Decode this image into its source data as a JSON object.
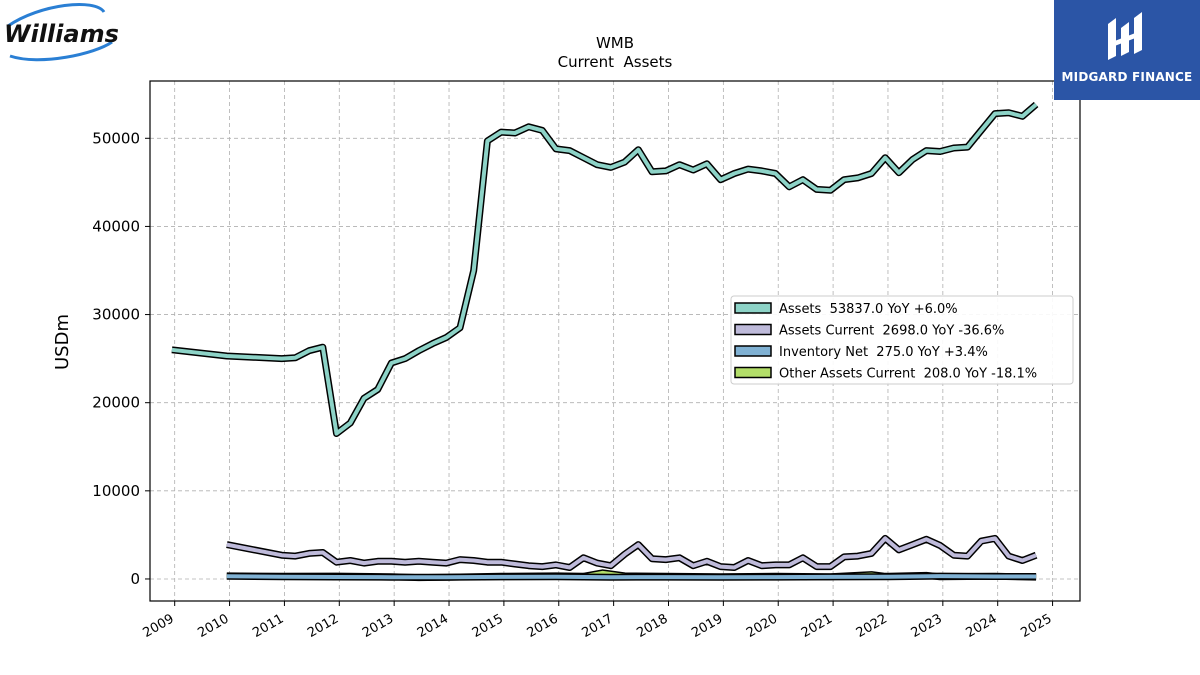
{
  "logos": {
    "left_text": "Williams",
    "right_text": "MIDGARD FINANCE"
  },
  "colors": {
    "assets": "#8dd3c7",
    "assets_current": "#bebada",
    "inventory_net": "#80b1d3",
    "other_assets_current": "#b3de69",
    "brand_blue": "#2b55a6",
    "williams_blue": "#2a7fd4"
  },
  "chart_data": {
    "type": "line",
    "title": "WMB",
    "subtitle": "Current  Assets",
    "ylabel": "USDm",
    "xlabel": "",
    "xlim": [
      2008.55,
      2025.5
    ],
    "ylim": [
      -2500,
      56500
    ],
    "xticks": [
      "2009",
      "2010",
      "2011",
      "2012",
      "2013",
      "2014",
      "2015",
      "2016",
      "2017",
      "2018",
      "2019",
      "2020",
      "2021",
      "2022",
      "2023",
      "2024",
      "2025"
    ],
    "yticks": [
      "0",
      "10000",
      "20000",
      "30000",
      "40000",
      "50000"
    ],
    "grid": true,
    "legend_position": "center-right",
    "series": [
      {
        "name": "Assets  53837.0 YoY +6.0%",
        "color_key": "assets",
        "points": [
          [
            2008.95,
            26000
          ],
          [
            2009.95,
            25300
          ],
          [
            2010.95,
            25000
          ],
          [
            2011.2,
            25100
          ],
          [
            2011.45,
            25900
          ],
          [
            2011.7,
            26300
          ],
          [
            2011.95,
            16500
          ],
          [
            2012.2,
            17700
          ],
          [
            2012.45,
            20500
          ],
          [
            2012.7,
            21500
          ],
          [
            2012.95,
            24500
          ],
          [
            2013.2,
            25000
          ],
          [
            2013.45,
            25900
          ],
          [
            2013.7,
            26700
          ],
          [
            2013.95,
            27400
          ],
          [
            2014.2,
            28500
          ],
          [
            2014.45,
            35000
          ],
          [
            2014.7,
            49700
          ],
          [
            2014.95,
            50700
          ],
          [
            2015.2,
            50600
          ],
          [
            2015.45,
            51300
          ],
          [
            2015.7,
            50900
          ],
          [
            2015.95,
            48800
          ],
          [
            2016.2,
            48600
          ],
          [
            2016.45,
            47800
          ],
          [
            2016.7,
            47000
          ],
          [
            2016.95,
            46700
          ],
          [
            2017.2,
            47300
          ],
          [
            2017.45,
            48700
          ],
          [
            2017.7,
            46200
          ],
          [
            2017.95,
            46300
          ],
          [
            2018.2,
            47000
          ],
          [
            2018.45,
            46400
          ],
          [
            2018.7,
            47100
          ],
          [
            2018.95,
            45300
          ],
          [
            2019.2,
            46000
          ],
          [
            2019.45,
            46500
          ],
          [
            2019.7,
            46300
          ],
          [
            2019.95,
            46000
          ],
          [
            2020.2,
            44500
          ],
          [
            2020.45,
            45300
          ],
          [
            2020.7,
            44200
          ],
          [
            2020.95,
            44100
          ],
          [
            2021.2,
            45300
          ],
          [
            2021.45,
            45500
          ],
          [
            2021.7,
            46000
          ],
          [
            2021.95,
            47800
          ],
          [
            2022.2,
            46100
          ],
          [
            2022.45,
            47600
          ],
          [
            2022.7,
            48600
          ],
          [
            2022.95,
            48500
          ],
          [
            2023.2,
            48900
          ],
          [
            2023.45,
            49000
          ],
          [
            2023.7,
            50900
          ],
          [
            2023.95,
            52800
          ],
          [
            2024.2,
            52900
          ],
          [
            2024.45,
            52500
          ],
          [
            2024.7,
            53837
          ]
        ]
      },
      {
        "name": "Assets Current  2698.0 YoY -36.6%",
        "color_key": "assets_current",
        "points": [
          [
            2009.95,
            3900
          ],
          [
            2010.95,
            2700
          ],
          [
            2011.2,
            2600
          ],
          [
            2011.45,
            2900
          ],
          [
            2011.7,
            3000
          ],
          [
            2011.95,
            1900
          ],
          [
            2012.2,
            2100
          ],
          [
            2012.45,
            1800
          ],
          [
            2012.7,
            2000
          ],
          [
            2012.95,
            2000
          ],
          [
            2013.2,
            1900
          ],
          [
            2013.45,
            2000
          ],
          [
            2013.7,
            1900
          ],
          [
            2013.95,
            1800
          ],
          [
            2014.2,
            2200
          ],
          [
            2014.45,
            2100
          ],
          [
            2014.7,
            1900
          ],
          [
            2014.95,
            1900
          ],
          [
            2015.2,
            1700
          ],
          [
            2015.45,
            1500
          ],
          [
            2015.7,
            1400
          ],
          [
            2015.95,
            1600
          ],
          [
            2016.2,
            1300
          ],
          [
            2016.45,
            2400
          ],
          [
            2016.7,
            1800
          ],
          [
            2016.95,
            1500
          ],
          [
            2017.2,
            2800
          ],
          [
            2017.45,
            3900
          ],
          [
            2017.7,
            2300
          ],
          [
            2017.95,
            2200
          ],
          [
            2018.2,
            2400
          ],
          [
            2018.45,
            1500
          ],
          [
            2018.7,
            2000
          ],
          [
            2018.95,
            1400
          ],
          [
            2019.2,
            1300
          ],
          [
            2019.45,
            2100
          ],
          [
            2019.7,
            1500
          ],
          [
            2019.95,
            1600
          ],
          [
            2020.2,
            1600
          ],
          [
            2020.45,
            2400
          ],
          [
            2020.7,
            1400
          ],
          [
            2020.95,
            1400
          ],
          [
            2021.2,
            2500
          ],
          [
            2021.45,
            2600
          ],
          [
            2021.7,
            2900
          ],
          [
            2021.95,
            4600
          ],
          [
            2022.2,
            3300
          ],
          [
            2022.45,
            3900
          ],
          [
            2022.7,
            4500
          ],
          [
            2022.95,
            3800
          ],
          [
            2023.2,
            2700
          ],
          [
            2023.45,
            2600
          ],
          [
            2023.7,
            4300
          ],
          [
            2023.95,
            4600
          ],
          [
            2024.2,
            2600
          ],
          [
            2024.45,
            2100
          ],
          [
            2024.7,
            2698
          ]
        ]
      },
      {
        "name": "Inventory Net  275.0 YoY +3.4%",
        "color_key": "inventory_net",
        "points": [
          [
            2009.95,
            300
          ],
          [
            2010.95,
            250
          ],
          [
            2011.95,
            220
          ],
          [
            2012.95,
            200
          ],
          [
            2013.95,
            200
          ],
          [
            2014.95,
            230
          ],
          [
            2015.95,
            250
          ],
          [
            2016.95,
            200
          ],
          [
            2017.95,
            210
          ],
          [
            2018.95,
            200
          ],
          [
            2019.95,
            210
          ],
          [
            2020.95,
            230
          ],
          [
            2021.95,
            250
          ],
          [
            2022.95,
            330
          ],
          [
            2023.95,
            280
          ],
          [
            2024.7,
            275
          ]
        ]
      },
      {
        "name": "Other Assets Current  208.0 YoY -18.1%",
        "color_key": "other_assets_current",
        "points": [
          [
            2009.95,
            350
          ],
          [
            2010.95,
            300
          ],
          [
            2011.95,
            320
          ],
          [
            2012.95,
            250
          ],
          [
            2013.45,
            150
          ],
          [
            2013.95,
            200
          ],
          [
            2014.45,
            250
          ],
          [
            2014.95,
            300
          ],
          [
            2015.95,
            350
          ],
          [
            2016.45,
            300
          ],
          [
            2016.8,
            700
          ],
          [
            2017.2,
            350
          ],
          [
            2017.95,
            300
          ],
          [
            2018.95,
            250
          ],
          [
            2019.95,
            300
          ],
          [
            2020.95,
            250
          ],
          [
            2021.7,
            500
          ],
          [
            2021.95,
            300
          ],
          [
            2022.7,
            400
          ],
          [
            2022.95,
            250
          ],
          [
            2023.95,
            300
          ],
          [
            2024.7,
            208
          ]
        ]
      }
    ]
  }
}
